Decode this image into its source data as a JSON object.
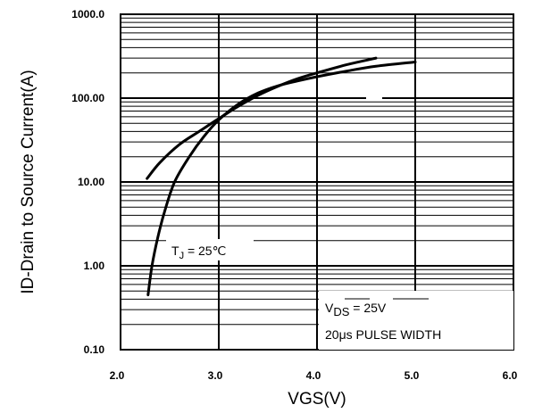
{
  "chart_data": {
    "type": "line",
    "xlabel": "VGS(V)",
    "ylabel": "ID-Drain to Source Current(A)",
    "xlim": [
      2.0,
      6.0
    ],
    "ylim": [
      0.1,
      1000.0
    ],
    "yscale": "log",
    "grid": true,
    "x_ticks": [
      "2.0",
      "3.0",
      "4.0",
      "5.0",
      "6.0"
    ],
    "y_ticks": [
      "0.10",
      "1.00",
      "10.00",
      "100.00",
      "1000.0"
    ],
    "series": [
      {
        "x": [
          2.27,
          2.4,
          2.6,
          2.8,
          3.0,
          3.2,
          3.4,
          3.6,
          3.8,
          4.0,
          4.3,
          4.6
        ],
        "y": [
          11,
          17,
          28,
          40,
          57,
          80,
          108,
          138,
          170,
          200,
          250,
          300
        ]
      },
      {
        "x": [
          2.28,
          2.32,
          2.38,
          2.45,
          2.55,
          2.7,
          2.85,
          3.0,
          3.2,
          3.4,
          3.6,
          3.8,
          4.0,
          4.3,
          4.6,
          5.0
        ],
        "y": [
          0.45,
          1.0,
          2.2,
          4.5,
          10,
          20,
          35,
          55,
          85,
          115,
          140,
          160,
          180,
          210,
          240,
          270
        ]
      }
    ],
    "annotations": {
      "tj_label": "T",
      "tj_sub": "J",
      "tj_rest": " = 25℃",
      "vds_label": "V",
      "vds_sub": "DS",
      "vds_rest": " = 25V",
      "pulse": "20μs  PULSE WIDTH"
    }
  }
}
